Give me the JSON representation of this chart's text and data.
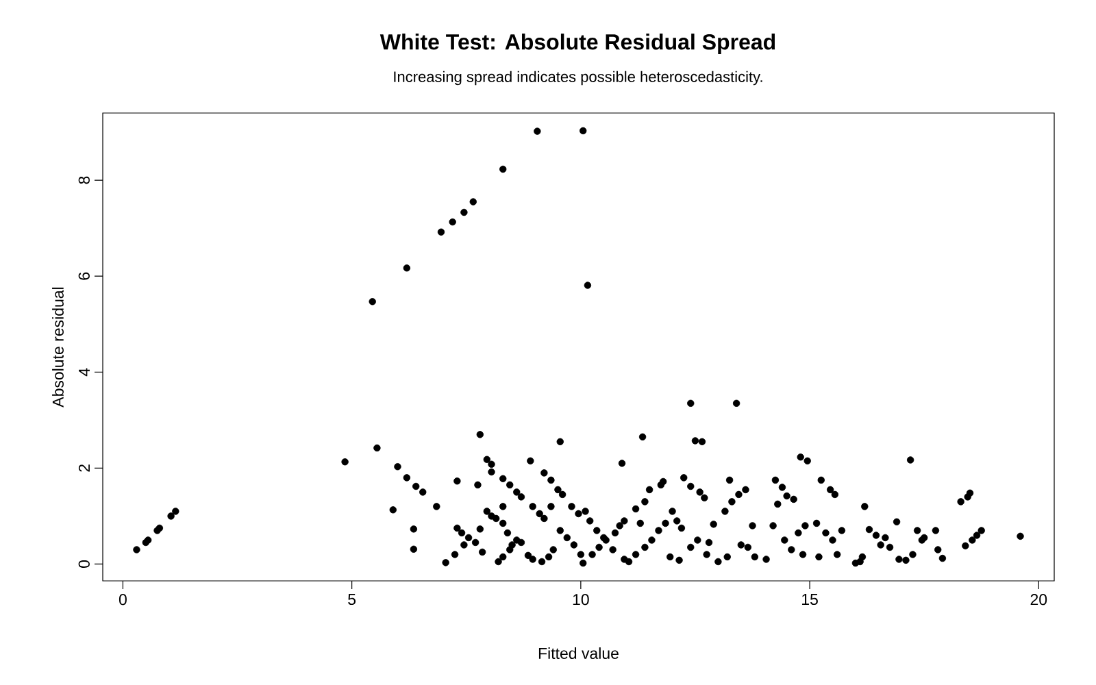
{
  "chart_data": {
    "type": "scatter",
    "title": "White Test: Absolute Residual Spread",
    "subtitle": "Increasing spread indicates possible heteroscedasticity.",
    "xlabel": "Fitted value",
    "ylabel": "Absolute residual",
    "marker": "circle",
    "color": "#000000",
    "xlim": [
      -0.44,
      20.34
    ],
    "ylim": [
      -0.35,
      9.4
    ],
    "xticks": [
      0,
      5,
      10,
      15,
      20
    ],
    "yticks": [
      0,
      2,
      4,
      6,
      8
    ],
    "x": [
      0.3,
      0.5,
      0.55,
      0.75,
      0.8,
      1.05,
      1.15,
      4.85,
      5.45,
      5.55,
      5.9,
      6.0,
      6.2,
      6.2,
      6.35,
      6.35,
      6.4,
      6.55,
      6.85,
      6.95,
      7.05,
      7.2,
      7.25,
      7.3,
      7.3,
      7.4,
      7.45,
      7.45,
      7.55,
      7.65,
      7.7,
      7.75,
      7.8,
      7.8,
      7.85,
      7.95,
      7.95,
      8.05,
      8.05,
      8.05,
      8.15,
      8.2,
      8.3,
      8.3,
      8.3,
      8.3,
      8.3,
      8.4,
      8.45,
      8.45,
      8.5,
      8.6,
      8.6,
      8.7,
      8.7,
      8.85,
      8.9,
      8.95,
      8.95,
      9.05,
      9.1,
      9.15,
      9.2,
      9.2,
      9.3,
      9.35,
      9.35,
      9.4,
      9.5,
      9.55,
      9.55,
      9.6,
      9.7,
      9.8,
      9.85,
      9.95,
      10.0,
      10.05,
      10.05,
      10.1,
      10.15,
      10.2,
      10.25,
      10.35,
      10.4,
      10.5,
      10.55,
      10.7,
      10.75,
      10.85,
      10.9,
      10.95,
      10.95,
      11.05,
      11.2,
      11.2,
      11.3,
      11.35,
      11.4,
      11.4,
      11.5,
      11.55,
      11.7,
      11.75,
      11.8,
      11.85,
      11.95,
      12.0,
      12.1,
      12.15,
      12.2,
      12.25,
      12.4,
      12.4,
      12.4,
      12.5,
      12.55,
      12.6,
      12.65,
      12.7,
      12.75,
      12.8,
      12.9,
      13.0,
      13.15,
      13.2,
      13.25,
      13.3,
      13.4,
      13.45,
      13.5,
      13.6,
      13.65,
      13.75,
      13.8,
      14.05,
      14.2,
      14.25,
      14.3,
      14.4,
      14.45,
      14.5,
      14.6,
      14.65,
      14.75,
      14.8,
      14.85,
      14.9,
      14.95,
      15.15,
      15.2,
      15.25,
      15.35,
      15.45,
      15.5,
      15.55,
      15.6,
      15.7,
      16.0,
      16.1,
      16.15,
      16.2,
      16.3,
      16.45,
      16.55,
      16.65,
      16.75,
      16.9,
      16.95,
      17.1,
      17.2,
      17.25,
      17.35,
      17.45,
      17.5,
      17.75,
      17.8,
      17.9,
      18.3,
      18.4,
      18.45,
      18.5,
      18.55,
      18.65,
      18.75,
      19.6
    ],
    "values": [
      0.3,
      0.45,
      0.5,
      0.7,
      0.75,
      1.0,
      1.1,
      2.13,
      5.47,
      2.42,
      1.13,
      2.03,
      6.17,
      1.8,
      0.73,
      0.31,
      1.62,
      1.5,
      1.2,
      6.92,
      0.03,
      7.13,
      0.2,
      1.73,
      0.75,
      0.65,
      7.33,
      0.4,
      0.55,
      7.55,
      0.45,
      1.65,
      2.7,
      0.73,
      0.25,
      2.18,
      1.1,
      2.08,
      1.92,
      1.0,
      0.95,
      0.05,
      0.85,
      1.78,
      0.15,
      1.2,
      8.23,
      0.65,
      1.65,
      0.3,
      0.4,
      1.5,
      0.5,
      1.4,
      0.45,
      0.18,
      2.15,
      0.1,
      1.2,
      9.02,
      1.05,
      0.05,
      1.9,
      0.95,
      0.15,
      1.75,
      1.2,
      0.3,
      1.55,
      2.55,
      0.7,
      1.45,
      0.55,
      1.2,
      0.4,
      1.05,
      0.2,
      9.03,
      0.02,
      1.1,
      5.81,
      0.9,
      0.2,
      0.7,
      0.35,
      0.55,
      0.5,
      0.3,
      0.65,
      0.8,
      2.1,
      0.9,
      0.1,
      0.05,
      1.15,
      0.2,
      0.85,
      2.65,
      1.3,
      0.35,
      1.55,
      0.5,
      0.7,
      1.65,
      1.72,
      0.85,
      0.15,
      1.1,
      0.9,
      0.08,
      0.75,
      1.8,
      1.62,
      3.35,
      0.35,
      2.57,
      0.5,
      1.5,
      2.55,
      1.38,
      0.2,
      0.45,
      0.83,
      0.05,
      1.1,
      0.15,
      1.75,
      1.3,
      3.35,
      1.45,
      0.4,
      1.55,
      0.35,
      0.8,
      0.15,
      0.1,
      0.8,
      1.75,
      1.25,
      1.6,
      0.5,
      1.42,
      0.3,
      1.35,
      0.65,
      2.23,
      0.2,
      0.8,
      2.15,
      0.85,
      0.15,
      1.75,
      0.65,
      1.55,
      0.5,
      1.45,
      0.2,
      0.7,
      0.02,
      0.05,
      0.15,
      1.2,
      0.72,
      0.6,
      0.4,
      0.55,
      0.35,
      0.88,
      0.1,
      0.08,
      2.17,
      0.2,
      0.7,
      0.5,
      0.55,
      0.7,
      0.3,
      0.12,
      1.3,
      0.38,
      1.4,
      1.48,
      0.5,
      0.6,
      0.7,
      0.58
    ]
  }
}
